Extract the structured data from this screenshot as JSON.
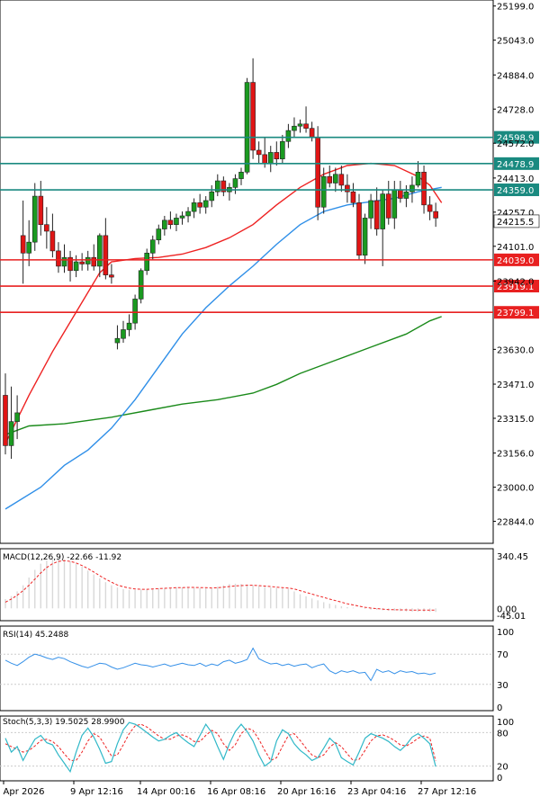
{
  "chart_data": {
    "type": "candlestick",
    "main": {
      "price_ticks": [
        "25199.0",
        "25043.0",
        "24884.0",
        "24728.0",
        "24572.0",
        "24413.0",
        "24257.0",
        "24101.0",
        "23942.0",
        "23630.0",
        "23471.0",
        "23315.0",
        "23156.0",
        "23000.0",
        "22844.0"
      ],
      "price_range": [
        22760,
        25210
      ],
      "hlines": [
        {
          "label": "24598.9",
          "value": 24598.9,
          "color": "#1a8a80"
        },
        {
          "label": "24478.9",
          "value": 24478.9,
          "color": "#1a8a80"
        },
        {
          "label": "24359.0",
          "value": 24359.0,
          "color": "#1a8a80"
        },
        {
          "label": "24039.0",
          "value": 24039.0,
          "color": "#e82020"
        },
        {
          "label": "23919.1",
          "value": 23919.1,
          "color": "#e82020"
        },
        {
          "label": "23799.1",
          "value": 23799.1,
          "color": "#e82020"
        }
      ],
      "current_price": "24215.5",
      "candles": [
        [
          23420,
          23520,
          23150,
          23190
        ],
        [
          23190,
          23460,
          23130,
          23300
        ],
        [
          23300,
          23420,
          23220,
          23340
        ],
        [
          24150,
          24310,
          23930,
          24070
        ],
        [
          24070,
          24220,
          24010,
          24120
        ],
        [
          24120,
          24390,
          24080,
          24330
        ],
        [
          24330,
          24400,
          24150,
          24200
        ],
        [
          24200,
          24280,
          24090,
          24170
        ],
        [
          24170,
          24250,
          24050,
          24080
        ],
        [
          24080,
          24120,
          23980,
          24010
        ],
        [
          24010,
          24110,
          23980,
          24050
        ],
        [
          24050,
          24080,
          23940,
          23990
        ],
        [
          23990,
          24060,
          23960,
          24030
        ],
        [
          24030,
          24070,
          23990,
          24020
        ],
        [
          24020,
          24080,
          23990,
          24050
        ],
        [
          24050,
          24110,
          23990,
          24010
        ],
        [
          24010,
          24160,
          23960,
          24150
        ],
        [
          24150,
          24230,
          23950,
          23970
        ],
        [
          23970,
          24020,
          23930,
          23960
        ],
        [
          23660,
          23740,
          23630,
          23680
        ],
        [
          23680,
          23760,
          23660,
          23720
        ],
        [
          23720,
          23790,
          23690,
          23750
        ],
        [
          23750,
          23880,
          23720,
          23860
        ],
        [
          23860,
          24000,
          23840,
          23990
        ],
        [
          23990,
          24090,
          23970,
          24070
        ],
        [
          24070,
          24150,
          24040,
          24130
        ],
        [
          24130,
          24200,
          24110,
          24180
        ],
        [
          24180,
          24240,
          24150,
          24220
        ],
        [
          24220,
          24260,
          24180,
          24200
        ],
        [
          24200,
          24250,
          24170,
          24230
        ],
        [
          24230,
          24260,
          24200,
          24240
        ],
        [
          24240,
          24280,
          24210,
          24260
        ],
        [
          24260,
          24320,
          24230,
          24300
        ],
        [
          24300,
          24340,
          24250,
          24280
        ],
        [
          24280,
          24330,
          24250,
          24310
        ],
        [
          24310,
          24380,
          24280,
          24350
        ],
        [
          24350,
          24430,
          24330,
          24400
        ],
        [
          24400,
          24420,
          24330,
          24350
        ],
        [
          24350,
          24390,
          24310,
          24370
        ],
        [
          24370,
          24430,
          24340,
          24410
        ],
        [
          24410,
          24460,
          24380,
          24440
        ],
        [
          24440,
          24870,
          24430,
          24850
        ],
        [
          24850,
          24960,
          24500,
          24540
        ],
        [
          24540,
          24580,
          24480,
          24520
        ],
        [
          24520,
          24600,
          24460,
          24480
        ],
        [
          24480,
          24560,
          24440,
          24530
        ],
        [
          24530,
          24580,
          24470,
          24500
        ],
        [
          24500,
          24610,
          24480,
          24580
        ],
        [
          24580,
          24660,
          24550,
          24630
        ],
        [
          24630,
          24690,
          24600,
          24650
        ],
        [
          24650,
          24680,
          24620,
          24660
        ],
        [
          24660,
          24740,
          24620,
          24640
        ],
        [
          24640,
          24670,
          24580,
          24600
        ],
        [
          24600,
          24650,
          24220,
          24280
        ],
        [
          24280,
          24460,
          24250,
          24420
        ],
        [
          24420,
          24470,
          24370,
          24390
        ],
        [
          24390,
          24460,
          24350,
          24430
        ],
        [
          24430,
          24470,
          24350,
          24380
        ],
        [
          24380,
          24430,
          24300,
          24350
        ],
        [
          24350,
          24390,
          24280,
          24300
        ],
        [
          24300,
          24340,
          24040,
          24060
        ],
        [
          24060,
          24250,
          24020,
          24230
        ],
        [
          24230,
          24340,
          24180,
          24310
        ],
        [
          24310,
          24370,
          24150,
          24180
        ],
        [
          24180,
          24360,
          24010,
          24340
        ],
        [
          24340,
          24400,
          24200,
          24230
        ],
        [
          24230,
          24400,
          24180,
          24360
        ],
        [
          24360,
          24400,
          24300,
          24320
        ],
        [
          24320,
          24380,
          24280,
          24350
        ],
        [
          24350,
          24420,
          24300,
          24380
        ],
        [
          24380,
          24490,
          24370,
          24440
        ],
        [
          24440,
          24470,
          24250,
          24290
        ],
        [
          24290,
          24330,
          24220,
          24260
        ],
        [
          24260,
          24300,
          24190,
          24230
        ]
      ],
      "ma_red": [
        [
          0,
          23200
        ],
        [
          4,
          23420
        ],
        [
          8,
          23620
        ],
        [
          12,
          23800
        ],
        [
          16,
          23980
        ],
        [
          18,
          24030
        ],
        [
          22,
          24045
        ],
        [
          26,
          24050
        ],
        [
          30,
          24065
        ],
        [
          34,
          24095
        ],
        [
          38,
          24140
        ],
        [
          42,
          24200
        ],
        [
          46,
          24290
        ],
        [
          50,
          24370
        ],
        [
          54,
          24430
        ],
        [
          58,
          24470
        ],
        [
          62,
          24480
        ],
        [
          66,
          24470
        ],
        [
          70,
          24420
        ],
        [
          72,
          24380
        ],
        [
          74,
          24300
        ]
      ],
      "ma_blue": [
        [
          0,
          22900
        ],
        [
          6,
          23000
        ],
        [
          10,
          23100
        ],
        [
          14,
          23170
        ],
        [
          18,
          23270
        ],
        [
          22,
          23400
        ],
        [
          26,
          23550
        ],
        [
          30,
          23700
        ],
        [
          34,
          23820
        ],
        [
          38,
          23920
        ],
        [
          42,
          24010
        ],
        [
          46,
          24110
        ],
        [
          50,
          24200
        ],
        [
          54,
          24260
        ],
        [
          58,
          24290
        ],
        [
          62,
          24305
        ],
        [
          66,
          24320
        ],
        [
          70,
          24350
        ],
        [
          74,
          24370
        ]
      ],
      "ma_green": [
        [
          0,
          23240
        ],
        [
          4,
          23280
        ],
        [
          10,
          23290
        ],
        [
          18,
          23320
        ],
        [
          24,
          23350
        ],
        [
          30,
          23380
        ],
        [
          36,
          23400
        ],
        [
          42,
          23430
        ],
        [
          46,
          23470
        ],
        [
          50,
          23520
        ],
        [
          56,
          23580
        ],
        [
          62,
          23640
        ],
        [
          68,
          23700
        ],
        [
          72,
          23760
        ],
        [
          74,
          23780
        ]
      ]
    },
    "macd": {
      "label": "MACD(12,26,9) -22.66 -11.92",
      "ticks": [
        "340.45",
        "0.00",
        "-45.01"
      ],
      "range": [
        -45.01,
        340.45
      ],
      "hist": [
        60,
        80,
        110,
        150,
        200,
        250,
        290,
        310,
        320,
        320,
        315,
        305,
        290,
        270,
        245,
        220,
        195,
        170,
        150,
        135,
        125,
        120,
        120,
        122,
        125,
        128,
        130,
        132,
        134,
        135,
        136,
        136,
        134,
        132,
        130,
        128,
        140,
        150,
        158,
        160,
        158,
        155,
        150,
        145,
        140,
        135,
        132,
        130,
        128,
        110,
        92,
        78,
        64,
        52,
        40,
        30,
        22,
        14,
        8,
        4,
        0,
        -4,
        -8,
        -10,
        -12,
        -14,
        -16,
        -18,
        -20,
        -21,
        -22,
        -22,
        -22,
        -23
      ],
      "signal": [
        40,
        60,
        85,
        115,
        150,
        190,
        230,
        265,
        290,
        305,
        310,
        305,
        295,
        278,
        258,
        236,
        212,
        190,
        170,
        152,
        140,
        132,
        126,
        124,
        124,
        126,
        128,
        130,
        132,
        134,
        135,
        136,
        136,
        135,
        134,
        132,
        134,
        138,
        142,
        146,
        148,
        150,
        150,
        148,
        145,
        142,
        138,
        135,
        132,
        126,
        115,
        104,
        93,
        82,
        71,
        60,
        50,
        40,
        30,
        22,
        14,
        7,
        2,
        -2,
        -5,
        -8,
        -9,
        -10,
        -10,
        -11,
        -11,
        -11,
        -12,
        -12
      ]
    },
    "rsi": {
      "label": "RSI(14) 45.2488",
      "ticks": [
        "100",
        "70",
        "30",
        "0"
      ],
      "range": [
        0,
        100
      ],
      "values": [
        62,
        58,
        55,
        60,
        66,
        70,
        68,
        65,
        63,
        66,
        64,
        60,
        57,
        54,
        52,
        55,
        58,
        57,
        53,
        50,
        52,
        55,
        58,
        56,
        55,
        53,
        55,
        57,
        54,
        56,
        58,
        56,
        55,
        58,
        54,
        57,
        55,
        60,
        62,
        58,
        60,
        63,
        78,
        64,
        60,
        57,
        58,
        55,
        57,
        54,
        56,
        57,
        52,
        55,
        57,
        48,
        44,
        48,
        46,
        48,
        45,
        46,
        35,
        50,
        46,
        48,
        44,
        48,
        46,
        47,
        44,
        45,
        43,
        45
      ]
    },
    "stoch": {
      "label": "Stoch(5,3,3) 19.5025 28.9900",
      "ticks": [
        "100",
        "80",
        "20",
        "0"
      ],
      "range": [
        0,
        100
      ],
      "main": [
        70,
        45,
        55,
        30,
        50,
        68,
        75,
        62,
        58,
        40,
        25,
        10,
        45,
        75,
        88,
        72,
        50,
        25,
        28,
        60,
        85,
        98,
        95,
        88,
        80,
        72,
        65,
        68,
        75,
        80,
        70,
        62,
        55,
        75,
        95,
        80,
        55,
        32,
        60,
        82,
        95,
        82,
        65,
        40,
        20,
        28,
        65,
        85,
        78,
        60,
        48,
        40,
        30,
        35,
        52,
        70,
        60,
        35,
        28,
        22,
        45,
        70,
        78,
        74,
        70,
        64,
        55,
        48,
        58,
        72,
        78,
        70,
        60,
        19
      ],
      "signal": [
        60,
        55,
        50,
        45,
        48,
        56,
        66,
        68,
        64,
        55,
        42,
        30,
        30,
        45,
        65,
        78,
        72,
        55,
        38,
        40,
        58,
        78,
        92,
        95,
        90,
        82,
        74,
        68,
        68,
        74,
        76,
        72,
        64,
        64,
        75,
        84,
        78,
        60,
        48,
        58,
        78,
        88,
        84,
        68,
        48,
        30,
        35,
        55,
        75,
        78,
        66,
        52,
        40,
        35,
        40,
        54,
        62,
        55,
        42,
        30,
        32,
        48,
        65,
        74,
        76,
        72,
        66,
        58,
        56,
        62,
        70,
        74,
        70,
        29
      ]
    },
    "x_labels": [
      "7 Apr 2026",
      "9 Apr 12:16",
      "14 Apr 00:16",
      "16 Apr 08:16",
      "20 Apr 16:16",
      "23 Apr 04:16",
      "27 Apr 12:16"
    ]
  },
  "colors": {
    "bull": "#1a9a20",
    "bear": "#e01515",
    "ma_red": "#ee2222",
    "ma_blue": "#2f8fe8",
    "ma_green": "#1a8a1a",
    "stoch_main": "#30b8c8",
    "stoch_signal": "#ee2222",
    "rsi_line": "#3590e8",
    "hist": "#d8d8d8"
  }
}
